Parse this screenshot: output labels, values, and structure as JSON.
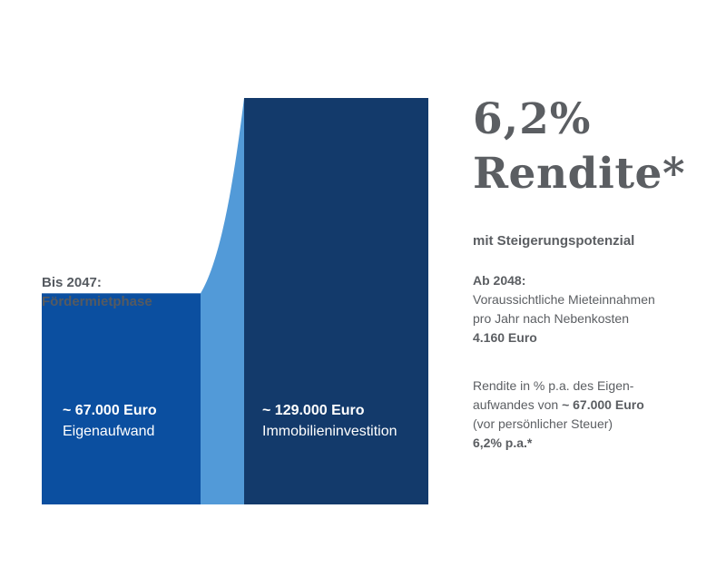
{
  "chart_data": {
    "type": "bar",
    "categories": [
      "Eigenaufwand",
      "Immobilieninvestition"
    ],
    "values": [
      67000,
      129000
    ],
    "value_labels": [
      "~ 67.000 Euro",
      "~ 129.000 Euro"
    ],
    "phase_label": [
      "Bis 2047:",
      "Fördermietphase"
    ],
    "colors": {
      "bar_1": "#0b4fa0",
      "connector": "#529ad8",
      "bar_2": "#133a6b"
    },
    "headline": {
      "percent": "6,2%",
      "word": "Rendite*",
      "subtitle": "mit Steigerungspotenzial"
    },
    "info": {
      "heading": "Ab 2048:",
      "line1": "Voraussichtliche Mieteinnahmen",
      "line2": "pro Jahr nach Nebenkosten",
      "value": "4.160 Euro"
    },
    "rendite_info": {
      "line1": "Rendite in % p.a. des Eigen-",
      "line2_prefix": "aufwandes von ",
      "line2_value": "~ 67.000 Euro",
      "line3": "(vor persönlicher Steuer)",
      "value": "6,2% p.a.*"
    },
    "text_color": "#5b5e62"
  }
}
